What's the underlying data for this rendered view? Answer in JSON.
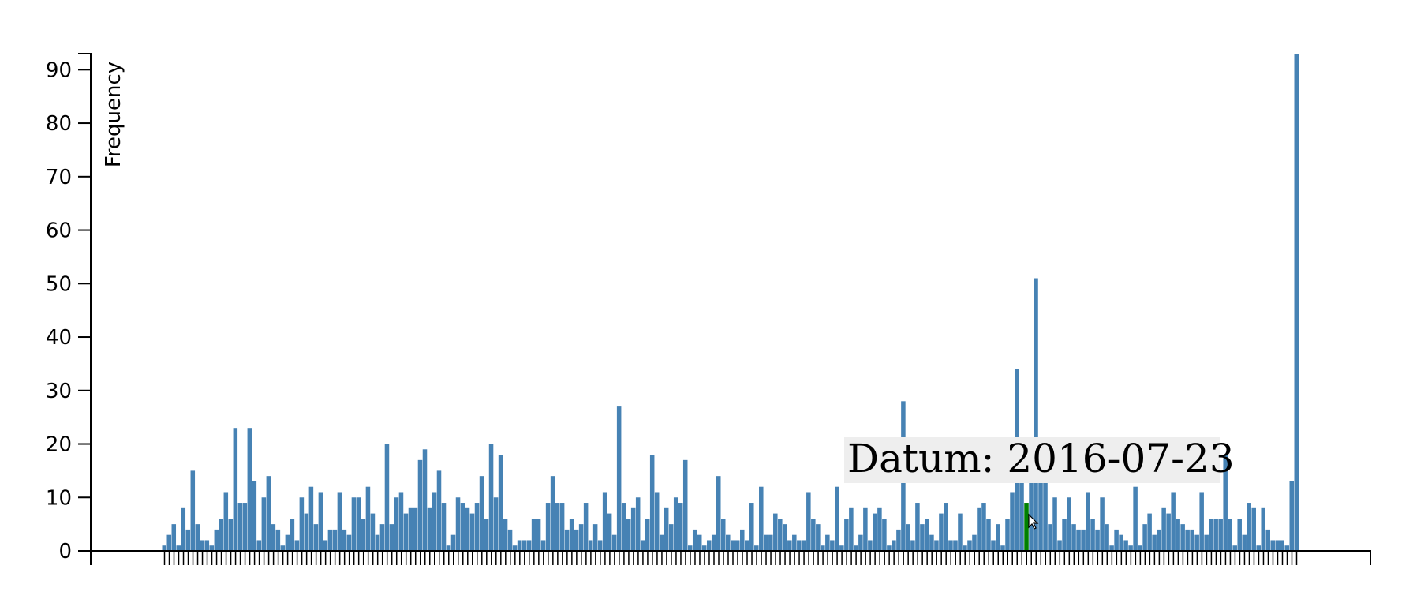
{
  "chart_data": {
    "type": "bar",
    "ylabel": "Frequency",
    "xlabel": "",
    "ylim": [
      0,
      93
    ],
    "yticks": [
      0,
      10,
      20,
      30,
      40,
      50,
      60,
      70,
      80,
      90
    ],
    "x_tick_labels": "none",
    "grid": false,
    "legend": "none",
    "values": [
      1,
      3,
      5,
      1,
      8,
      4,
      15,
      5,
      2,
      2,
      1,
      4,
      6,
      11,
      6,
      23,
      9,
      9,
      23,
      13,
      2,
      10,
      14,
      5,
      4,
      1,
      3,
      6,
      2,
      10,
      7,
      12,
      5,
      11,
      2,
      4,
      4,
      11,
      4,
      3,
      10,
      10,
      6,
      12,
      7,
      3,
      5,
      20,
      5,
      10,
      11,
      7,
      8,
      8,
      17,
      19,
      8,
      11,
      15,
      9,
      1,
      3,
      10,
      9,
      8,
      7,
      9,
      14,
      6,
      20,
      10,
      18,
      6,
      4,
      1,
      2,
      2,
      2,
      6,
      6,
      2,
      9,
      14,
      9,
      9,
      4,
      6,
      4,
      5,
      9,
      2,
      5,
      2,
      11,
      7,
      3,
      27,
      9,
      6,
      8,
      10,
      2,
      6,
      18,
      11,
      3,
      8,
      5,
      10,
      9,
      17,
      1,
      4,
      3,
      1,
      2,
      3,
      14,
      6,
      3,
      2,
      2,
      4,
      2,
      9,
      1,
      12,
      3,
      3,
      7,
      6,
      5,
      2,
      3,
      2,
      2,
      11,
      6,
      5,
      1,
      3,
      2,
      12,
      1,
      6,
      8,
      1,
      3,
      8,
      2,
      7,
      8,
      6,
      1,
      2,
      4,
      28,
      5,
      2,
      9,
      5,
      6,
      3,
      2,
      7,
      9,
      2,
      2,
      7,
      1,
      2,
      3,
      8,
      9,
      6,
      2,
      5,
      1,
      6,
      11,
      34,
      13,
      9,
      13,
      51,
      13,
      13,
      5,
      10,
      2,
      6,
      10,
      5,
      4,
      4,
      11,
      6,
      4,
      10,
      5,
      1,
      4,
      3,
      2,
      1,
      12,
      1,
      5,
      7,
      3,
      4,
      8,
      7,
      11,
      6,
      5,
      4,
      4,
      3,
      11,
      3,
      6,
      6,
      6,
      18,
      6,
      1,
      6,
      3,
      9,
      8,
      1,
      8,
      4,
      2,
      2,
      2,
      1,
      13,
      93
    ],
    "highlight_index": 182,
    "colors": {
      "bar": "#4682b4",
      "highlight": "#008000",
      "axis": "#000000",
      "tooltip_background": "#eeeeee"
    }
  },
  "tooltip": {
    "text": "Datum: 2016-07-23",
    "visible": true
  }
}
